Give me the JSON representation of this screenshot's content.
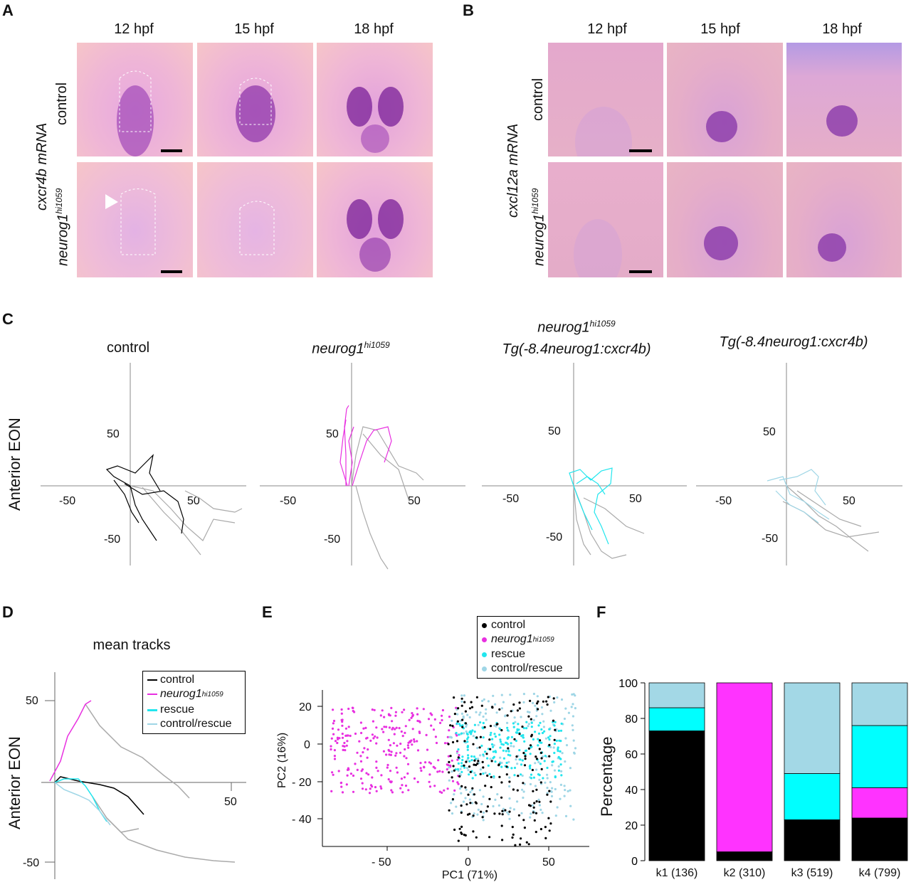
{
  "panelA": {
    "label": "A",
    "cols": [
      "12 hpf",
      "15 hpf",
      "18 hpf"
    ],
    "rows": [
      "control",
      "neurog1"
    ],
    "row_sup": "hi1059",
    "side": "cxcr4b mRNA"
  },
  "panelB": {
    "label": "B",
    "cols": [
      "12 hpf",
      "15 hpf",
      "18 hpf"
    ],
    "rows": [
      "control",
      "neurog1"
    ],
    "row_sup": "hi1059",
    "side": "cxcl12a mRNA"
  },
  "panelC": {
    "label": "C",
    "titles": {
      "control": "control",
      "neurog1_base": "neurog1",
      "neurog1_sup": "hi1059",
      "rescue_line1_base": "neurog1",
      "rescue_line1_sup": "hi1059",
      "rescue_line2": "Tg(-8.4neurog1:cxcr4b)",
      "tg": "Tg(-8.4neurog1:cxcr4b)"
    },
    "ylabel": "Anterior EON",
    "ticks": [
      "50",
      "-50",
      "-50",
      "50"
    ]
  },
  "panelD": {
    "label": "D",
    "title": "mean tracks",
    "ylabel": "Anterior EON",
    "legend": [
      {
        "name": "control",
        "color": "#000000"
      },
      {
        "name": "neurog1",
        "sup": "hi1059",
        "color": "#e830e0"
      },
      {
        "name": "rescue",
        "color": "#22e6ee"
      },
      {
        "name": "control/rescue",
        "color": "#9fd6e6"
      }
    ],
    "ticks": {
      "y_pos": "50",
      "y_neg": "-50",
      "x_pos": "50"
    }
  },
  "panelE": {
    "label": "E",
    "xlabel": "PC1 (71%)",
    "ylabel": "PC2 (16%)",
    "xticks": [
      "- 50",
      "0",
      "50"
    ],
    "yticks": [
      "20",
      "0",
      "- 20",
      "- 40"
    ],
    "legend": [
      {
        "name": "control",
        "color": "#000000"
      },
      {
        "name": "neurog1",
        "sup": "hi1059",
        "color": "#e830e0"
      },
      {
        "name": "rescue",
        "color": "#22e6ee"
      },
      {
        "name": "control/rescue",
        "color": "#9fd6e6"
      }
    ]
  },
  "chart_data": {
    "type": "bar",
    "label": "F",
    "ylabel": "Percentage",
    "ylim": [
      0,
      100
    ],
    "yticks": [
      0,
      20,
      40,
      60,
      80,
      100
    ],
    "categories": [
      "k1 (136)",
      "k2 (310)",
      "k3 (519)",
      "k4 (799)"
    ],
    "series": [
      {
        "color": "#000000",
        "values": [
          73,
          5,
          23,
          24
        ]
      },
      {
        "color": "#ff33ff",
        "values": [
          0,
          95,
          0,
          17
        ]
      },
      {
        "color": "#00ffff",
        "values": [
          13,
          0,
          26,
          35
        ]
      },
      {
        "color": "#a3d8e6",
        "values": [
          14,
          0,
          51,
          24
        ]
      }
    ]
  }
}
